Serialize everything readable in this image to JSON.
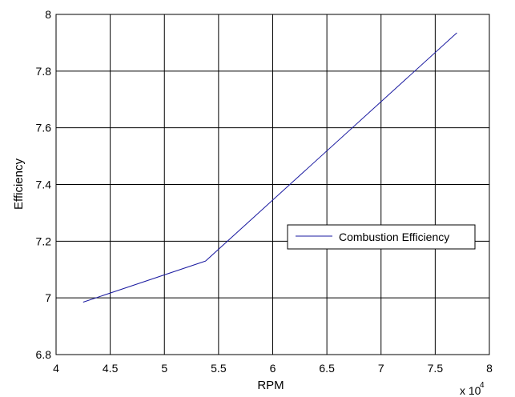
{
  "chart_data": {
    "type": "line",
    "xlabel": "RPM",
    "ylabel": "Efficiency",
    "x_multiplier_base": "x 10",
    "x_multiplier_exp": "4",
    "xlim": [
      4,
      8
    ],
    "ylim": [
      6.8,
      8
    ],
    "x_ticks": [
      "4",
      "4.5",
      "5",
      "5.5",
      "6",
      "6.5",
      "7",
      "7.5",
      "8"
    ],
    "y_ticks": [
      "6.8",
      "7",
      "7.2",
      "7.4",
      "7.6",
      "7.8",
      "8"
    ],
    "grid": true,
    "legend_position": "right",
    "series": [
      {
        "name": "Combustion Efficiency",
        "color": "#1a1aa0",
        "x": [
          4.25,
          5.38,
          7.7
        ],
        "y": [
          6.985,
          7.13,
          7.935
        ]
      }
    ]
  }
}
